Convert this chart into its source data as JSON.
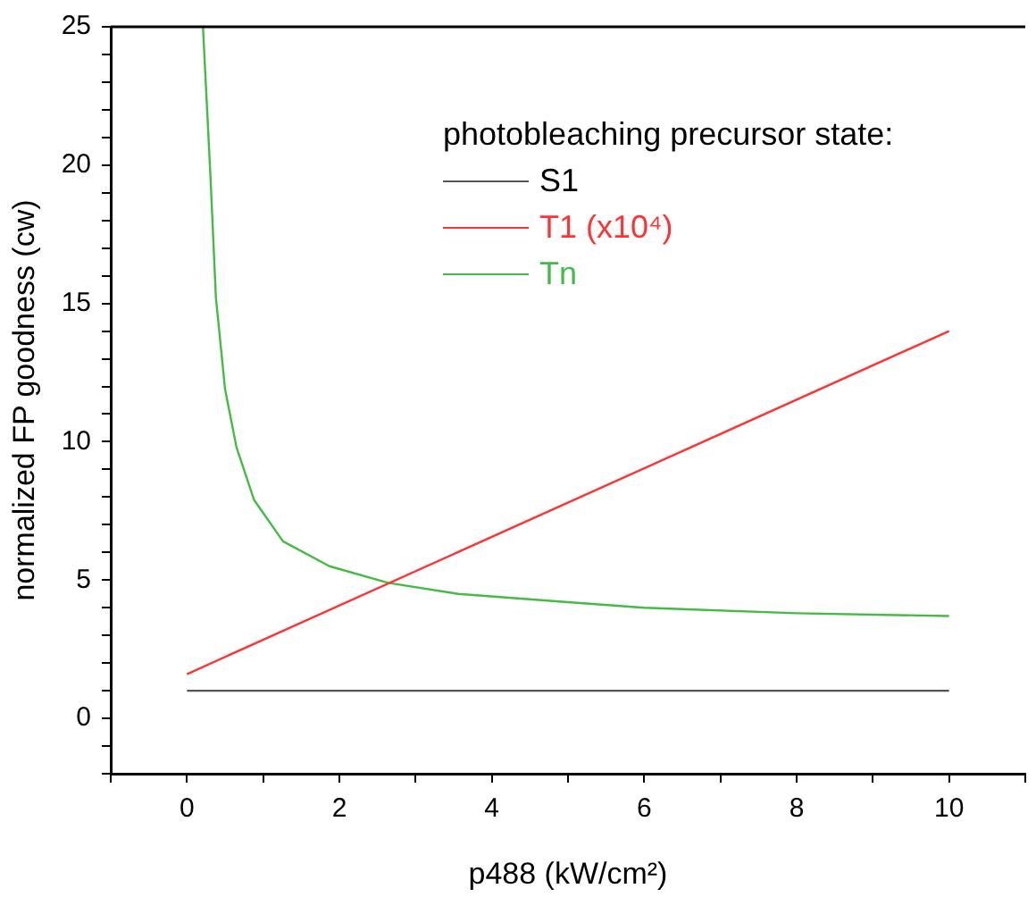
{
  "chart_data": {
    "type": "line",
    "xlabel": "p488 (kW/cm²)",
    "ylabel": "normalized FP goodness (cw)",
    "legend_title": "photobleaching precursor state:",
    "legend": "top right",
    "marker": "none",
    "line_style": "solid",
    "grid": false,
    "xlim": [
      -1,
      11
    ],
    "ylim": [
      -2,
      25
    ],
    "xticks": [
      {
        "value": -1,
        "label": null
      },
      0,
      {
        "value": 1,
        "label": null
      },
      2,
      {
        "value": 3,
        "label": null
      },
      4,
      {
        "value": 5,
        "label": null
      },
      6,
      {
        "value": 7,
        "label": null
      },
      8,
      {
        "value": 9,
        "label": null
      },
      10,
      {
        "value": 11,
        "label": null
      }
    ],
    "yticks": [
      {
        "value": -2,
        "label": null
      },
      {
        "value": -1,
        "label": null
      },
      0,
      {
        "value": 1,
        "label": null
      },
      {
        "value": 2,
        "label": null
      },
      {
        "value": 3,
        "label": null
      },
      {
        "value": 4,
        "label": null
      },
      5,
      {
        "value": 6,
        "label": null
      },
      {
        "value": 7,
        "label": null
      },
      {
        "value": 8,
        "label": null
      },
      {
        "value": 9,
        "label": null
      },
      10,
      {
        "value": 11,
        "label": null
      },
      {
        "value": 12,
        "label": null
      },
      {
        "value": 13,
        "label": null
      },
      {
        "value": 14,
        "label": null
      },
      15,
      {
        "value": 16,
        "label": null
      },
      {
        "value": 17,
        "label": null
      },
      {
        "value": 18,
        "label": null
      },
      {
        "value": 19,
        "label": null
      },
      20,
      {
        "value": 21,
        "label": null
      },
      {
        "value": 22,
        "label": null
      },
      {
        "value": 23,
        "label": null
      },
      {
        "value": 24,
        "label": null
      },
      25
    ],
    "series": [
      {
        "name": "S1",
        "color": "#555555",
        "x": [
          0,
          10
        ],
        "values": [
          1,
          1
        ]
      },
      {
        "name": "T1 (x10⁴)",
        "color": "#ff3333",
        "x": [
          0,
          10
        ],
        "values": [
          1.6,
          14.0
        ]
      },
      {
        "name": "Tn",
        "color": "#44bb44",
        "x": [
          0.21,
          0.31,
          0.38,
          0.5,
          0.65,
          0.88,
          1.26,
          1.87,
          2.64,
          3.56,
          5,
          6,
          8,
          10
        ],
        "values": [
          25,
          19.5,
          15.2,
          11.9,
          9.8,
          7.9,
          6.4,
          5.5,
          4.9,
          4.5,
          4.2,
          4.0,
          3.8,
          3.7
        ]
      }
    ]
  }
}
